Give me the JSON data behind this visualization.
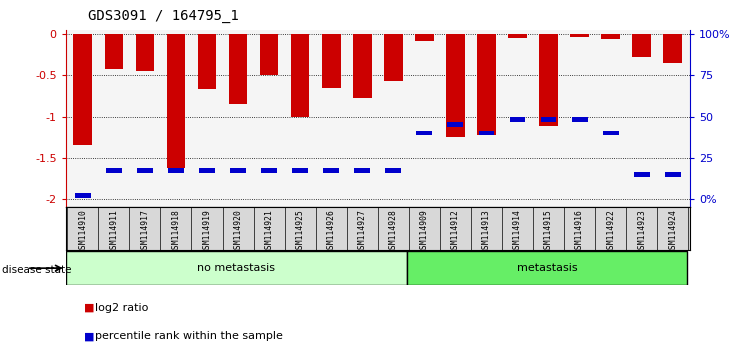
{
  "title": "GDS3091 / 164795_1",
  "samples": [
    "GSM114910",
    "GSM114911",
    "GSM114917",
    "GSM114918",
    "GSM114919",
    "GSM114920",
    "GSM114921",
    "GSM114925",
    "GSM114926",
    "GSM114927",
    "GSM114928",
    "GSM114909",
    "GSM114912",
    "GSM114913",
    "GSM114914",
    "GSM114915",
    "GSM114916",
    "GSM114922",
    "GSM114923",
    "GSM114924"
  ],
  "log2_ratio": [
    -1.35,
    -0.42,
    -0.45,
    -1.63,
    -0.67,
    -0.85,
    -0.5,
    -1.0,
    -0.65,
    -0.78,
    -0.57,
    -0.08,
    -1.25,
    -1.22,
    -0.05,
    -1.12,
    -0.03,
    -0.06,
    -0.28,
    -0.35
  ],
  "percentile_pct": [
    2,
    17,
    17,
    17,
    17,
    17,
    17,
    17,
    17,
    17,
    17,
    40,
    45,
    40,
    48,
    48,
    48,
    40,
    15,
    15
  ],
  "no_metastasis_count": 11,
  "metastasis_count": 9,
  "bar_color_red": "#cc0000",
  "bar_color_blue": "#0000cc",
  "ylim_left": [
    -2.1,
    0.05
  ],
  "ylim_right": [
    -2.1,
    0.05
  ],
  "yticks_left": [
    0.0,
    -0.5,
    -1.0,
    -1.5,
    -2.0
  ],
  "yticks_right": [
    0.0,
    -0.5,
    -1.0,
    -1.5,
    -2.0
  ],
  "ytick_labels_left": [
    "0",
    "-0.5",
    "-1",
    "-1.5",
    "-2"
  ],
  "ytick_labels_right": [
    "100%",
    "75",
    "50",
    "25",
    "0%"
  ],
  "background_plot": "#f5f5f5",
  "no_metastasis_color": "#ccffcc",
  "metastasis_color": "#66ee66",
  "axis_color_left": "#cc0000",
  "axis_color_right": "#0000cc"
}
